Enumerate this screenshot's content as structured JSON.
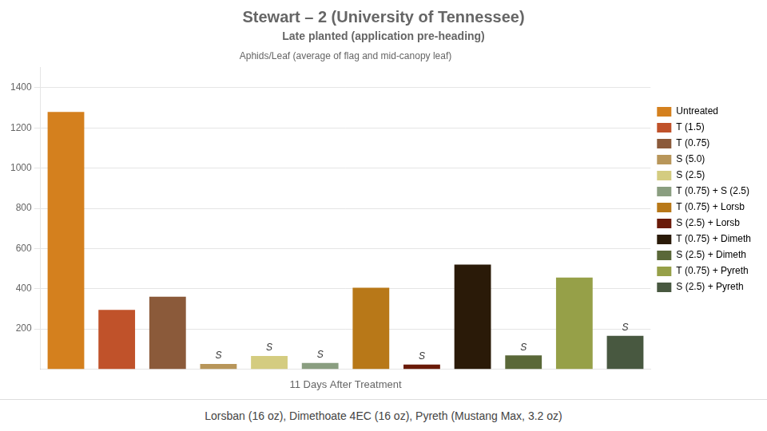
{
  "chart_data": {
    "type": "bar",
    "title": "Stewart – 2 (University of Tennessee)",
    "subtitle": "Late planted (application pre-heading)",
    "chart_title": "Aphids/Leaf (average of flag and mid-canopy leaf)",
    "xlabel": "11 Days After Treatment",
    "footer": "Lorsban (16 oz), Dimethoate 4EC (16 oz), Pyreth (Mustang Max, 3.2 oz)",
    "categories": [
      "Untreated",
      "T (1.5)",
      "T (0.75)",
      "S (5.0)",
      "S (2.5)",
      "T (0.75) + S (2.5)",
      "T (0.75) + Lorsb",
      "S (2.5) + Lorsb",
      "T (0.75) + Dimeth",
      "S (2.5) + Dimeth",
      "T (0.75) + Pyreth",
      "S (2.5) + Pyreth"
    ],
    "values": [
      1280,
      295,
      360,
      25,
      65,
      30,
      405,
      22,
      520,
      68,
      455,
      165
    ],
    "colors": [
      "#D4801E",
      "#C0522A",
      "#8B5A3A",
      "#B8965A",
      "#D4CC80",
      "#8A9E80",
      "#B87818",
      "#6A1A08",
      "#2A1A08",
      "#5A6838",
      "#96A048",
      "#485840"
    ],
    "annotations": [
      {
        "category": "S (5.0)",
        "text": "S"
      },
      {
        "category": "S (2.5)",
        "text": "S"
      },
      {
        "category": "T (0.75) + S (2.5)",
        "text": "S"
      },
      {
        "category": "S (2.5) + Lorsb",
        "text": "S"
      },
      {
        "category": "S (2.5) + Dimeth",
        "text": "S"
      },
      {
        "category": "S (2.5) + Pyreth",
        "text": "S"
      }
    ],
    "ylim": [
      0,
      1500
    ],
    "yticks": [
      200,
      400,
      600,
      800,
      1000,
      1200,
      1400
    ],
    "grid": true,
    "legend": "right",
    "tick_labels": "y"
  }
}
